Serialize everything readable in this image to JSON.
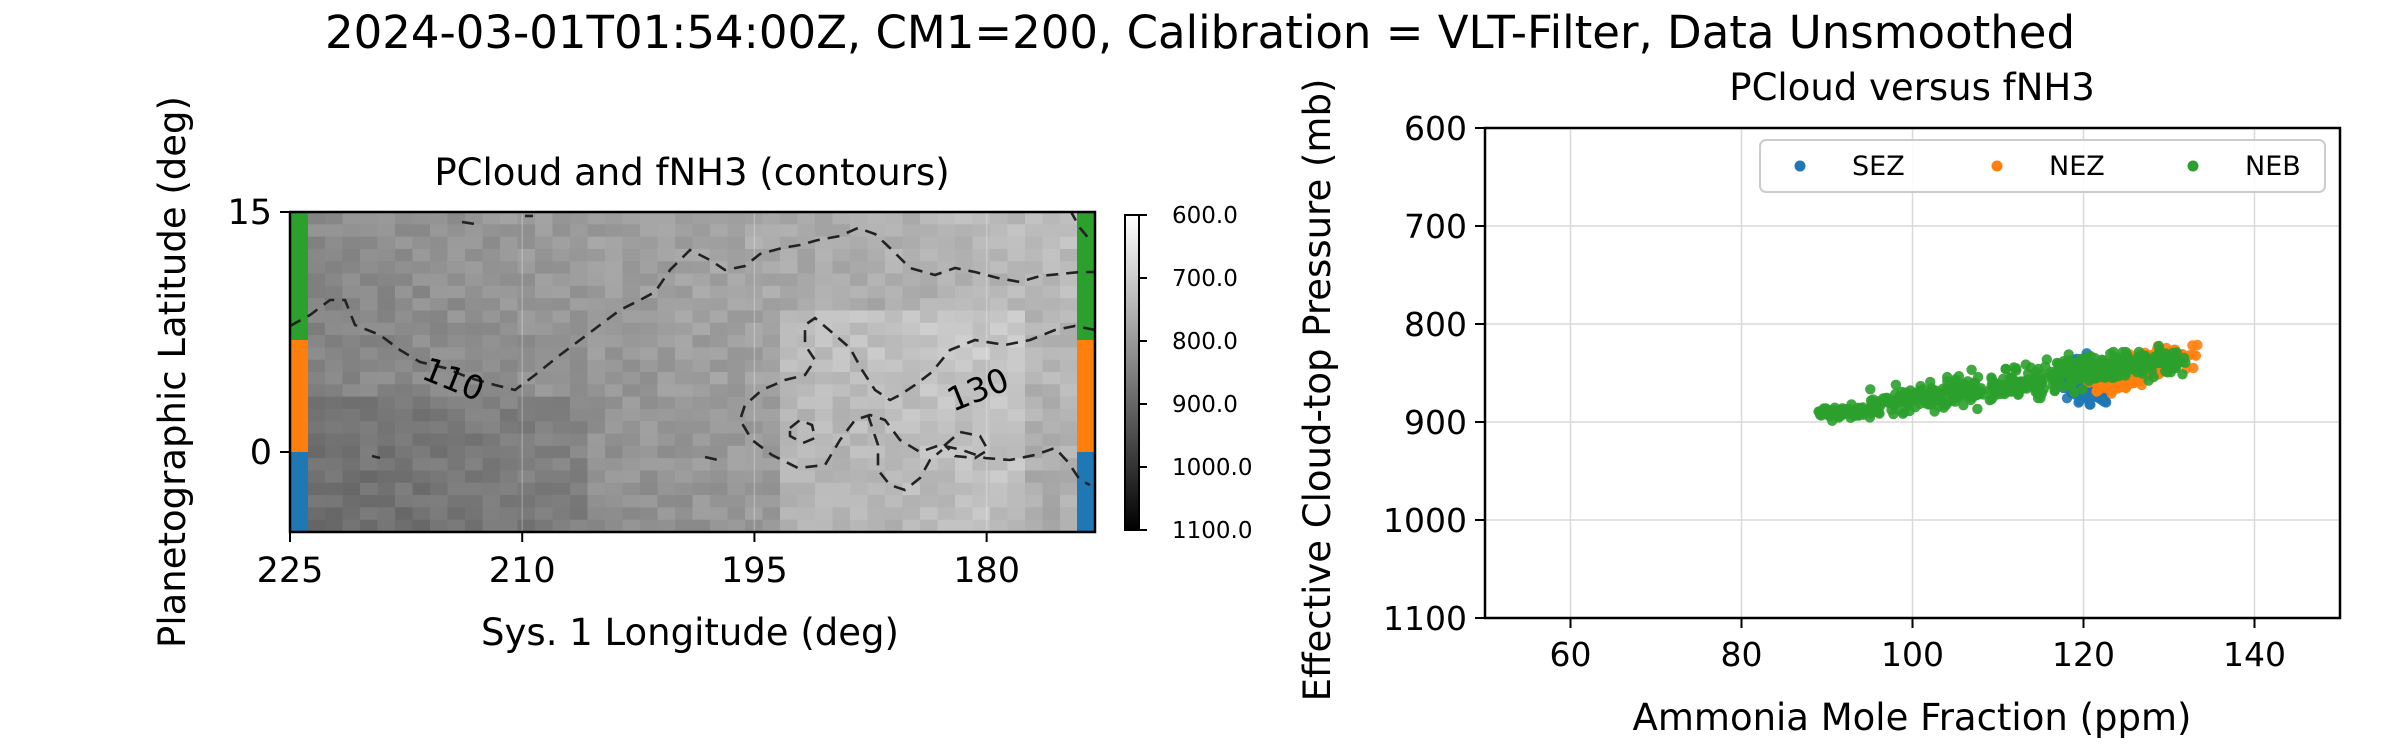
{
  "figure": {
    "suptitle": "2024-03-01T01:54:00Z, CM1=200, Calibration = VLT-Filter, Data Unsmoothed"
  },
  "chart_data": [
    {
      "type": "heatmap",
      "title": "PCloud and fNH3 (contours)",
      "xlabel": "Sys. 1 Longitude (deg)",
      "ylabel": "Planetographic Latitude (deg)",
      "xlim": [
        225,
        173
      ],
      "ylim": [
        -5,
        15
      ],
      "xticks": [
        225,
        210,
        195,
        180
      ],
      "yticks": [
        0,
        15
      ],
      "colormap": "gray",
      "colorbar": {
        "range": [
          600,
          1100
        ],
        "reversed": true,
        "ticks": [
          "600.0",
          "700.0",
          "800.0",
          "900.0",
          "1000.0",
          "1100.0"
        ]
      },
      "contour_labels": [
        "110",
        "130"
      ],
      "zone_bands": [
        {
          "name": "SEZ",
          "lat_range": [
            -5,
            0
          ],
          "color": "#1f77b4"
        },
        {
          "name": "NEZ",
          "lat_range": [
            0,
            7
          ],
          "color": "#ff7f0e"
        },
        {
          "name": "NEB",
          "lat_range": [
            7,
            15
          ],
          "color": "#2ca02c"
        }
      ],
      "field_summary": "PCloud mostly 750-900 mbar; darker (higher pressure) toward west, lighter near 180-190 deg"
    },
    {
      "type": "scatter",
      "title": "PCloud versus fNH3",
      "xlabel": "Ammonia Mole Fraction (ppm)",
      "ylabel": "Effective Cloud-top Pressure (mb)",
      "xlim": [
        50,
        150
      ],
      "ylim": [
        1100,
        600
      ],
      "xticks": [
        60,
        80,
        100,
        120,
        140
      ],
      "yticks": [
        600,
        700,
        800,
        900,
        1000,
        1100
      ],
      "grid": true,
      "legend": {
        "placement": "top-right",
        "ncol": 3
      },
      "series": [
        {
          "name": "SEZ",
          "color": "#1f77b4",
          "x_range": [
            112,
            130
          ],
          "y_range": [
            790,
            920
          ],
          "x_center": 121,
          "y_center": 860
        },
        {
          "name": "NEZ",
          "color": "#ff7f0e",
          "x_range": [
            100,
            143
          ],
          "y_range": [
            780,
            910
          ],
          "x_center": 126,
          "y_center": 840
        },
        {
          "name": "NEB",
          "color": "#2ca02c",
          "x_range": [
            89,
            132
          ],
          "y_range": [
            800,
            910
          ],
          "x_center": 108,
          "y_center": 865
        }
      ]
    }
  ]
}
